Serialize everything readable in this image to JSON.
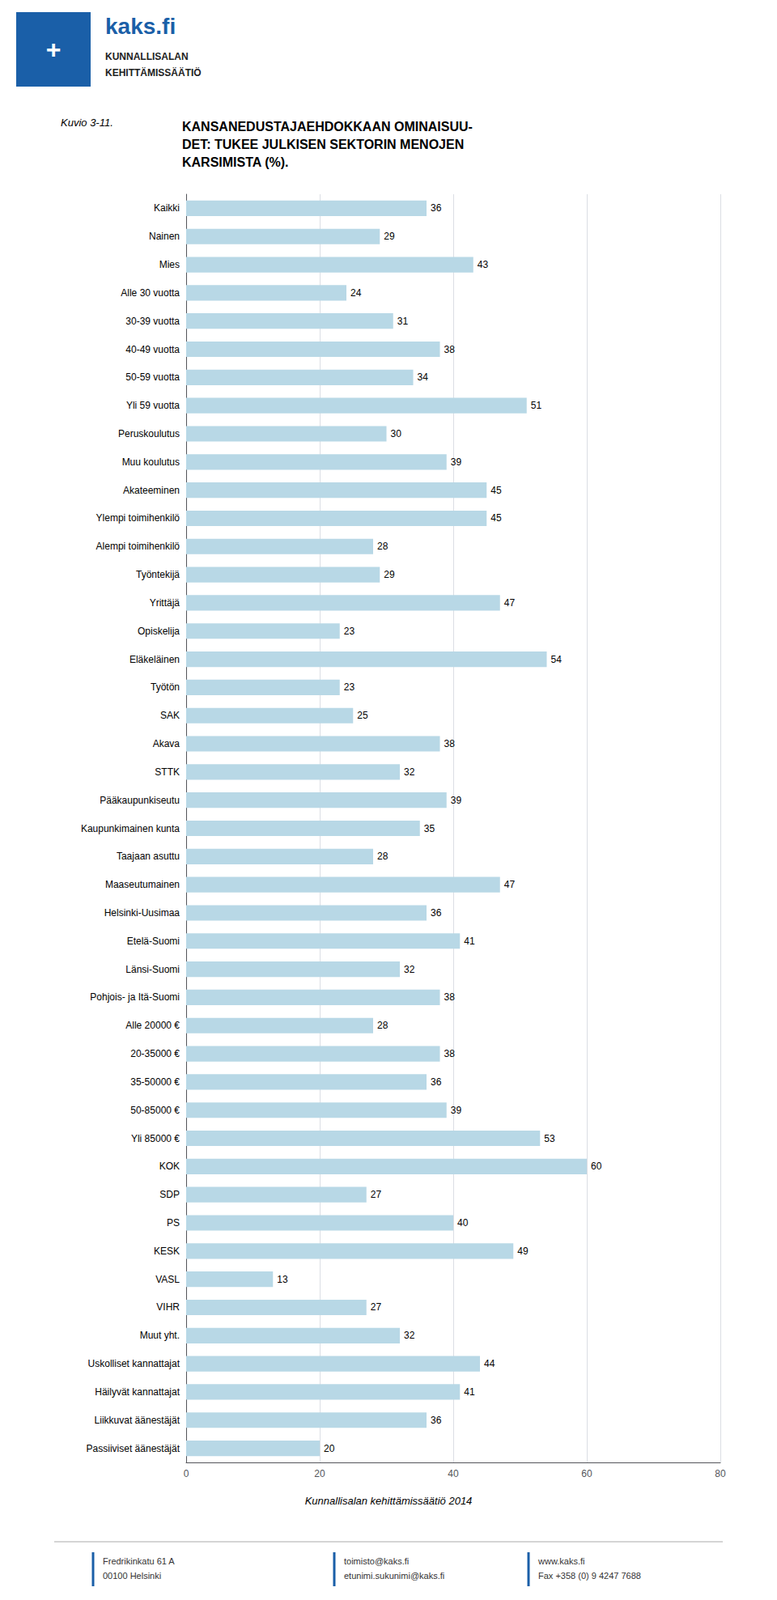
{
  "chart_data": {
    "type": "bar",
    "orientation": "horizontal",
    "title": "KANSANEDUSTAJAEHDOKKAAN OMINAISUU-\nDET: TUKEE JULKISEN SEKTORIN MENOJEN\nKARSIMISTA (%).",
    "subtitle": "Kuvio 3-11.",
    "annotations": [
      "+",
      "kaks.fi",
      "KUNNALLISALAN",
      "KEHITTÄMISSÄÄTIÖ",
      "Kunnallisalan kehittämissäätiö 2014",
      "Fredrikinkatu 61 A\n00100 Helsinki",
      "toimisto@kaks.fi\netunimi.sukunimi@kaks.fi",
      "www.kaks.fi\nFax +358 (0) 9 4247 7688"
    ],
    "categories": [
      "Kaikki",
      "Nainen",
      "Mies",
      "Alle 30 vuotta",
      "30-39 vuotta",
      "40-49 vuotta",
      "50-59 vuotta",
      "Yli 59 vuotta",
      "Peruskoulutus",
      "Muu koulutus",
      "Akateeminen",
      "Ylempi toimihenkilö",
      "Alempi toimihenkilö",
      "Työntekijä",
      "Yrittäjä",
      "Opiskelija",
      "Eläkeläinen",
      "Työtön",
      "SAK",
      "Akava",
      "STTK",
      "Pääkaupunkiseutu",
      "Kaupunkimainen kunta",
      "Taajaan asuttu",
      "Maaseutumainen",
      "Helsinki-Uusimaa",
      "Etelä-Suomi",
      "Länsi-Suomi",
      "Pohjois- ja Itä-Suomi",
      "Alle 20000 €",
      "20-35000 €",
      "35-50000 €",
      "50-85000 €",
      "Yli 85000 €",
      "KOK",
      "SDP",
      "PS",
      "KESK",
      "VASL",
      "VIHR",
      "Muut yht.",
      "Uskolliset kannattajat",
      "Häilyvät kannattajat",
      "Liikkuvat äänestäjät",
      "Passiiviset äänestäjät"
    ],
    "values": [
      36,
      29,
      43,
      24,
      31,
      38,
      34,
      51,
      30,
      39,
      45,
      45,
      28,
      29,
      47,
      23,
      54,
      23,
      25,
      38,
      32,
      39,
      35,
      28,
      47,
      36,
      41,
      32,
      38,
      28,
      38,
      36,
      39,
      53,
      60,
      27,
      40,
      49,
      13,
      27,
      32,
      44,
      41,
      36,
      20
    ],
    "color": "#b8d8e6",
    "xlim": [
      0,
      80
    ],
    "xticks": [
      0,
      20,
      40,
      60,
      80
    ],
    "grid": true,
    "data_labels": true
  }
}
